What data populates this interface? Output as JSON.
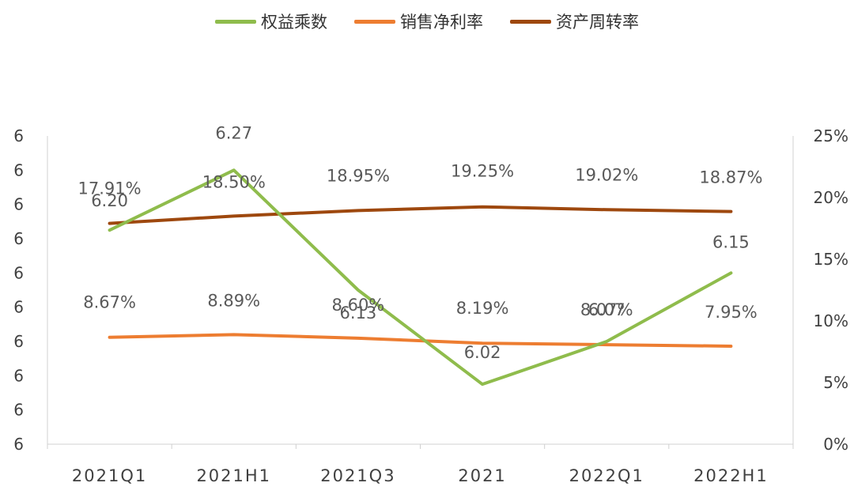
{
  "chart_data": {
    "type": "line",
    "categories": [
      "2021Q1",
      "2021H1",
      "2021Q3",
      "2021",
      "2022Q1",
      "2022H1"
    ],
    "series": [
      {
        "name": "权益乘数",
        "axis": "left",
        "color": "#8fbc4c",
        "values": [
          6.2,
          6.27,
          6.13,
          6.02,
          6.07,
          6.15
        ],
        "labels": [
          "6.20",
          "6.27",
          "6.13",
          "6.02",
          "6.07",
          "6.15"
        ]
      },
      {
        "name": "销售净利率",
        "axis": "right",
        "color": "#ed7d31",
        "values": [
          8.67,
          8.89,
          8.6,
          8.19,
          8.07,
          7.95
        ],
        "labels": [
          "8.67%",
          "8.89%",
          "8.60%",
          "8.19%",
          "8.07%",
          "7.95%"
        ]
      },
      {
        "name": "资产周转率",
        "axis": "right",
        "color": "#9e480e",
        "values": [
          17.91,
          18.5,
          18.95,
          19.25,
          19.02,
          18.87
        ],
        "labels": [
          "17.91%",
          "18.50%",
          "18.95%",
          "19.25%",
          "19.02%",
          "18.87%"
        ]
      }
    ],
    "left_axis": {
      "ticks": [
        "6",
        "6",
        "6",
        "6",
        "6",
        "6",
        "6",
        "6",
        "6",
        "6"
      ],
      "ylim": [
        5.95,
        6.31
      ]
    },
    "right_axis": {
      "ticks": [
        "0%",
        "5%",
        "10%",
        "15%",
        "20%",
        "25%"
      ],
      "ylim": [
        0,
        25
      ]
    },
    "legend_position": "top-center",
    "grid": false
  }
}
